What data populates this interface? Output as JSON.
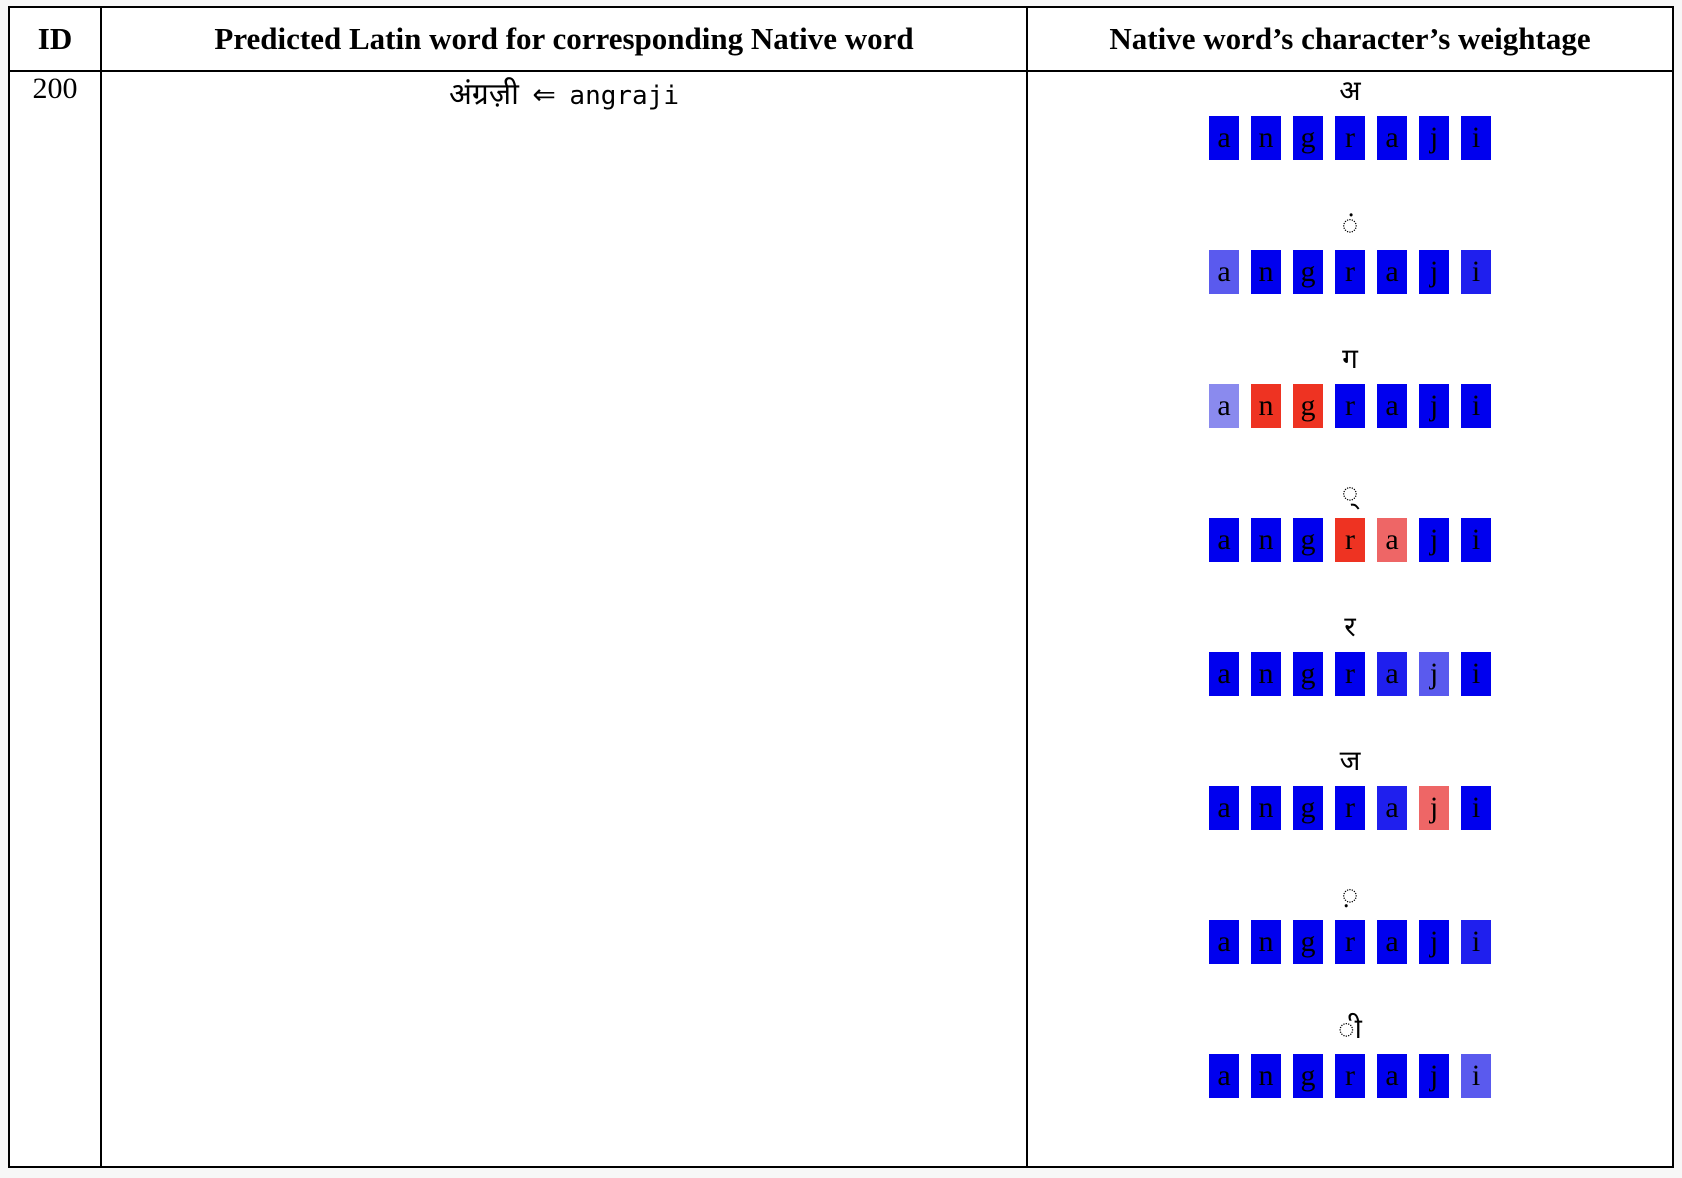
{
  "header": {
    "col_id": "ID",
    "col_pred": "Predicted Latin word for corresponding Native word",
    "col_weights": "Native word’s character’s weightage"
  },
  "row": {
    "id": "200",
    "native_word": "अंग्रज़ी",
    "arrow": "⇐",
    "latin_word": "angraji"
  },
  "colors": {
    "strong_blue": "#0000ee",
    "mid_blue": "#1f1fee",
    "light_blue": "#5a5aee",
    "pale_blue": "#8a8aee",
    "red": "#ee3322",
    "light_red": "#ee6666"
  },
  "weights": [
    {
      "native_char": "अ",
      "cells": [
        {
          "letter": "a",
          "color": "#0000ee"
        },
        {
          "letter": "n",
          "color": "#0000ee"
        },
        {
          "letter": "g",
          "color": "#0000ee"
        },
        {
          "letter": "r",
          "color": "#0000ee"
        },
        {
          "letter": "a",
          "color": "#0000ee"
        },
        {
          "letter": "j",
          "color": "#0000ee"
        },
        {
          "letter": "i",
          "color": "#0000ee"
        }
      ]
    },
    {
      "native_char": "◌ं",
      "cells": [
        {
          "letter": "a",
          "color": "#5a5aee"
        },
        {
          "letter": "n",
          "color": "#0000ee"
        },
        {
          "letter": "g",
          "color": "#0000ee"
        },
        {
          "letter": "r",
          "color": "#0000ee"
        },
        {
          "letter": "a",
          "color": "#0000ee"
        },
        {
          "letter": "j",
          "color": "#0000ee"
        },
        {
          "letter": "i",
          "color": "#1f1fee"
        }
      ]
    },
    {
      "native_char": "ग",
      "cells": [
        {
          "letter": "a",
          "color": "#8a8aee"
        },
        {
          "letter": "n",
          "color": "#ee3322"
        },
        {
          "letter": "g",
          "color": "#ee3322"
        },
        {
          "letter": "r",
          "color": "#0000ee"
        },
        {
          "letter": "a",
          "color": "#0000ee"
        },
        {
          "letter": "j",
          "color": "#0000ee"
        },
        {
          "letter": "i",
          "color": "#0000ee"
        }
      ]
    },
    {
      "native_char": "◌्",
      "cells": [
        {
          "letter": "a",
          "color": "#0000ee"
        },
        {
          "letter": "n",
          "color": "#0000ee"
        },
        {
          "letter": "g",
          "color": "#0000ee"
        },
        {
          "letter": "r",
          "color": "#ee3322"
        },
        {
          "letter": "a",
          "color": "#ee6666"
        },
        {
          "letter": "j",
          "color": "#0000ee"
        },
        {
          "letter": "i",
          "color": "#0000ee"
        }
      ]
    },
    {
      "native_char": "र",
      "cells": [
        {
          "letter": "a",
          "color": "#0000ee"
        },
        {
          "letter": "n",
          "color": "#0000ee"
        },
        {
          "letter": "g",
          "color": "#0000ee"
        },
        {
          "letter": "r",
          "color": "#0000ee"
        },
        {
          "letter": "a",
          "color": "#1f1fee"
        },
        {
          "letter": "j",
          "color": "#5a5aee"
        },
        {
          "letter": "i",
          "color": "#0000ee"
        }
      ]
    },
    {
      "native_char": "ज",
      "cells": [
        {
          "letter": "a",
          "color": "#0000ee"
        },
        {
          "letter": "n",
          "color": "#0000ee"
        },
        {
          "letter": "g",
          "color": "#0000ee"
        },
        {
          "letter": "r",
          "color": "#0000ee"
        },
        {
          "letter": "a",
          "color": "#1f1fee"
        },
        {
          "letter": "j",
          "color": "#ee6666"
        },
        {
          "letter": "i",
          "color": "#0000ee"
        }
      ]
    },
    {
      "native_char": "◌़",
      "cells": [
        {
          "letter": "a",
          "color": "#0000ee"
        },
        {
          "letter": "n",
          "color": "#0000ee"
        },
        {
          "letter": "g",
          "color": "#0000ee"
        },
        {
          "letter": "r",
          "color": "#0000ee"
        },
        {
          "letter": "a",
          "color": "#0000ee"
        },
        {
          "letter": "j",
          "color": "#0000ee"
        },
        {
          "letter": "i",
          "color": "#1f1fee"
        }
      ]
    },
    {
      "native_char": "◌ी",
      "cells": [
        {
          "letter": "a",
          "color": "#0000ee"
        },
        {
          "letter": "n",
          "color": "#0000ee"
        },
        {
          "letter": "g",
          "color": "#0000ee"
        },
        {
          "letter": "r",
          "color": "#0000ee"
        },
        {
          "letter": "a",
          "color": "#0000ee"
        },
        {
          "letter": "j",
          "color": "#0000ee"
        },
        {
          "letter": "i",
          "color": "#5a5aee"
        }
      ]
    }
  ]
}
